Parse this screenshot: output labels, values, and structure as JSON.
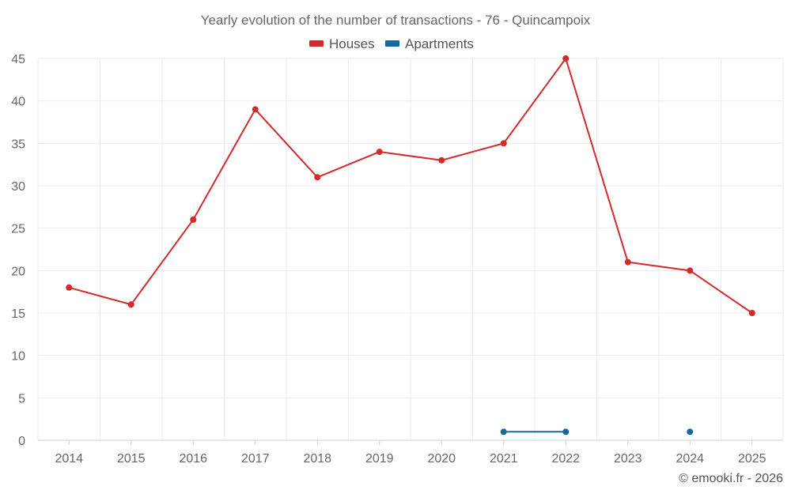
{
  "chart_data": {
    "type": "line",
    "title": "Yearly evolution of the number of transactions - 76 - Quincampoix",
    "categories": [
      "2014",
      "2015",
      "2016",
      "2017",
      "2018",
      "2019",
      "2020",
      "2021",
      "2022",
      "2023",
      "2024",
      "2025"
    ],
    "ylim": [
      0,
      45
    ],
    "yticks": [
      "0",
      "5",
      "10",
      "15",
      "20",
      "25",
      "30",
      "35",
      "40",
      "45"
    ],
    "grid": true,
    "legend_position": "top-center",
    "series": [
      {
        "name": "Houses",
        "color": "#d42a2a",
        "values": [
          18,
          16,
          26,
          39,
          31,
          34,
          33,
          35,
          45,
          21,
          20,
          15
        ]
      },
      {
        "name": "Apartments",
        "color": "#136a9a",
        "values": [
          null,
          null,
          null,
          null,
          null,
          null,
          null,
          1,
          1,
          null,
          1,
          null
        ]
      }
    ],
    "xlabel": "",
    "ylabel": ""
  },
  "credit": "© emooki.fr - 2026"
}
